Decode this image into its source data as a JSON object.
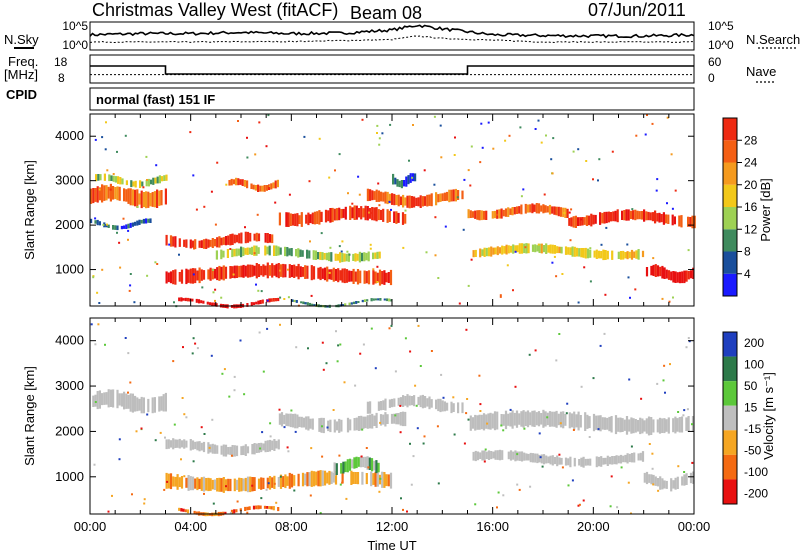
{
  "header": {
    "station": "Christmas Valley West (fitACF)",
    "beam": "Beam 08",
    "date": "07/Jun/2011"
  },
  "top_panels": {
    "nsky_label": "N.Sky",
    "nsearch_label": "N.Search",
    "noise_ticks_left": [
      "10^5",
      "10^0"
    ],
    "noise_ticks_right": [
      "10^5",
      "10^0"
    ],
    "freq_label": "Freq.",
    "freq_unit": "[MHz]",
    "freq_ticks": [
      "18",
      "8"
    ],
    "nave_label": "Nave",
    "nave_ticks": [
      "60",
      "0"
    ],
    "cpid_label": "CPID",
    "cpid_text": "normal (fast) 151 IF"
  },
  "colors": {
    "power": [
      "#1a1aff",
      "#1a4f9c",
      "#3f8b5e",
      "#9ed154",
      "#f2c81a",
      "#f59a1e",
      "#f45f14",
      "#ee2a12",
      "#e81010"
    ],
    "velocity": [
      "#1f3fbf",
      "#2d7a4a",
      "#5cc83a",
      "#bfbfbf",
      "#f5a623",
      "#f46a12",
      "#e81010"
    ],
    "ground_scatter": "#bdbdbd"
  },
  "chart_data": [
    {
      "type": "line",
      "panel": "noise",
      "x_range": [
        0,
        24
      ],
      "yscale": "log",
      "ylim_ticks": [
        "10^0",
        "10^5"
      ],
      "series": [
        {
          "name": "N.Sky",
          "x": [
            0,
            2,
            4,
            6,
            8,
            10,
            12,
            13,
            14,
            16,
            18,
            20,
            22,
            24
          ],
          "y_level": [
            0.55,
            0.6,
            0.6,
            0.65,
            0.6,
            0.62,
            0.75,
            0.95,
            0.8,
            0.55,
            0.52,
            0.5,
            0.5,
            0.55
          ]
        },
        {
          "name": "N.Search",
          "x": [
            0,
            4,
            8,
            12,
            13,
            14,
            18,
            24
          ],
          "y_level": [
            0.25,
            0.25,
            0.27,
            0.35,
            0.5,
            0.4,
            0.25,
            0.25
          ]
        }
      ]
    },
    {
      "type": "line",
      "panel": "frequency",
      "x_range": [
        0,
        24
      ],
      "y_ticks_left": [
        8,
        18
      ],
      "y_ticks_right": [
        0,
        60
      ],
      "series": [
        {
          "name": "Freq. [MHz]",
          "x": [
            0,
            3,
            3,
            15,
            15,
            24
          ],
          "y": [
            14.5,
            14.5,
            10.5,
            10.5,
            14.5,
            14.5
          ]
        },
        {
          "name": "Nave",
          "x": [
            0,
            24
          ],
          "y": [
            10.2,
            10.2
          ]
        }
      ]
    },
    {
      "type": "heatmap",
      "panel": "power",
      "xlabel": "",
      "ylabel": "Slant Range [km]",
      "x_range": [
        0,
        24
      ],
      "y_range": [
        180,
        4500
      ],
      "y_ticks": [
        1000,
        2000,
        3000,
        4000
      ],
      "colorbar_label": "Power [dB]",
      "colorbar_ticks": [
        4,
        8,
        12,
        16,
        20,
        24,
        28
      ],
      "bands": [
        {
          "x": [
            0,
            3
          ],
          "y_center": 2650,
          "width": 350,
          "level": 6
        },
        {
          "x": [
            0.2,
            3
          ],
          "y_center": 3000,
          "width": 150,
          "level": 3
        },
        {
          "x": [
            0,
            2.5
          ],
          "y_center": 2020,
          "width": 100,
          "level": 1
        },
        {
          "x": [
            3,
            7.5
          ],
          "y_center": 1650,
          "width": 220,
          "level": 7
        },
        {
          "x": [
            7.5,
            12.5
          ],
          "y_center": 2200,
          "width": 280,
          "level": 7
        },
        {
          "x": [
            3,
            12
          ],
          "y_center": 900,
          "width": 300,
          "level": 7
        },
        {
          "x": [
            5,
            11.5
          ],
          "y_center": 1350,
          "width": 200,
          "level": 3
        },
        {
          "x": [
            5.5,
            7.5
          ],
          "y_center": 2900,
          "width": 150,
          "level": 6
        },
        {
          "x": [
            11,
            14.8
          ],
          "y_center": 2600,
          "width": 250,
          "level": 6
        },
        {
          "x": [
            12,
            13
          ],
          "y_center": 3000,
          "width": 200,
          "level": 1
        },
        {
          "x": [
            15,
            19
          ],
          "y_center": 2300,
          "width": 200,
          "level": 6
        },
        {
          "x": [
            19,
            24
          ],
          "y_center": 2150,
          "width": 250,
          "level": 7
        },
        {
          "x": [
            15.2,
            22
          ],
          "y_center": 1400,
          "width": 200,
          "level": 4
        },
        {
          "x": [
            22,
            24
          ],
          "y_center": 900,
          "width": 250,
          "level": 8
        },
        {
          "x": [
            3.5,
            7.5
          ],
          "y_center": 250,
          "width": 80,
          "level": 8
        },
        {
          "x": [
            8,
            12
          ],
          "y_center": 250,
          "width": 60,
          "level": 2
        }
      ]
    },
    {
      "type": "heatmap",
      "panel": "velocity",
      "xlabel": "Time UT",
      "ylabel": "Slant Range [km]",
      "x_range": [
        0,
        24
      ],
      "x_ticks": [
        "00:00",
        "04:00",
        "08:00",
        "12:00",
        "16:00",
        "20:00",
        "00:00"
      ],
      "y_range": [
        180,
        4500
      ],
      "y_ticks": [
        1000,
        2000,
        3000,
        4000
      ],
      "colorbar_label": "Velocity [m s⁻¹]",
      "colorbar_ticks": [
        200,
        100,
        50,
        15,
        -15,
        -50,
        -100,
        -200
      ],
      "bands": [
        {
          "x": [
            0,
            3
          ],
          "y_center": 2650,
          "width": 350,
          "class": 3
        },
        {
          "x": [
            3,
            7.5
          ],
          "y_center": 1650,
          "width": 220,
          "class": 3
        },
        {
          "x": [
            7.5,
            12.5
          ],
          "y_center": 2200,
          "width": 280,
          "class": 3
        },
        {
          "x": [
            3,
            12
          ],
          "y_center": 900,
          "width": 300,
          "class": 4
        },
        {
          "x": [
            9.5,
            11.5
          ],
          "y_center": 1250,
          "width": 250,
          "class": 2
        },
        {
          "x": [
            11,
            14.8
          ],
          "y_center": 2600,
          "width": 250,
          "class": 3
        },
        {
          "x": [
            15,
            24
          ],
          "y_center": 2200,
          "width": 350,
          "class": 3
        },
        {
          "x": [
            15.2,
            22
          ],
          "y_center": 1400,
          "width": 200,
          "class": 3
        },
        {
          "x": [
            22,
            24
          ],
          "y_center": 900,
          "width": 250,
          "class": 3
        },
        {
          "x": [
            3.5,
            7.5
          ],
          "y_center": 250,
          "width": 80,
          "class": 5
        }
      ]
    }
  ]
}
